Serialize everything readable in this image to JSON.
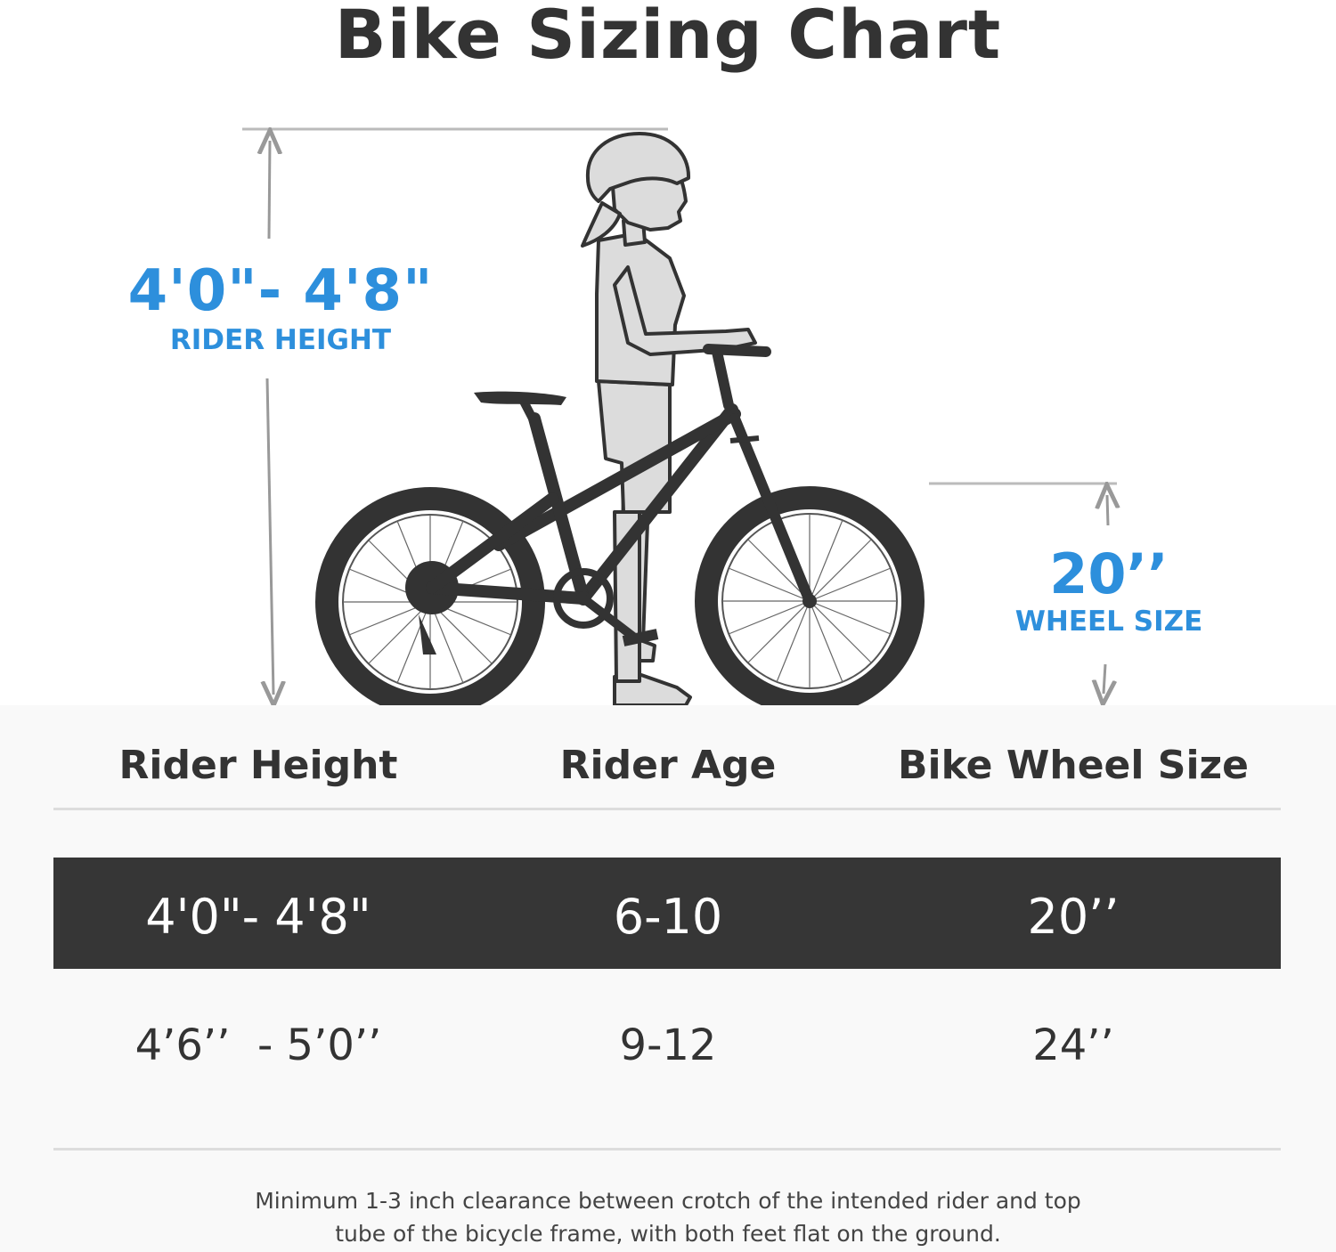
{
  "title": "Bike Sizing Chart",
  "rider_dimension": {
    "value": "4'0\"- 4'8\"",
    "label": "RIDER HEIGHT"
  },
  "wheel_dimension": {
    "value": "20’’",
    "label": "WHEEL SIZE"
  },
  "table": {
    "headers": [
      "Rider Height",
      "Rider Age",
      "Bike Wheel Size"
    ],
    "rows": [
      {
        "height": "4'0\"- 4'8\"",
        "age": "6-10",
        "wheel": "20’’",
        "highlighted": true
      },
      {
        "height": "4’6’’  - 5’0’’",
        "age": "9-12",
        "wheel": "24’’",
        "highlighted": false
      }
    ]
  },
  "note": {
    "line1": "Minimum 1-3 inch clearance between crotch of the intended rider and top",
    "line2": "tube of the bicycle frame, with both feet flat on the ground."
  },
  "colors": {
    "accent": "#2d8fdc",
    "highlight_row": "#363636",
    "text": "#333333"
  },
  "illustration": {
    "icons": [
      "rider-figure-icon",
      "bicycle-icon",
      "dimension-arrow-icon"
    ]
  }
}
